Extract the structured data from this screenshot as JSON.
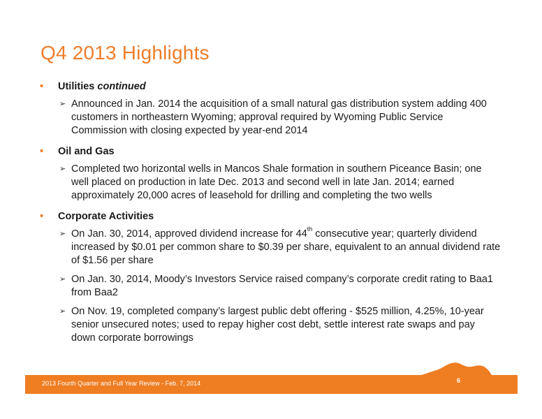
{
  "slide": {
    "title": "Q4 2013 Highlights",
    "sections": [
      {
        "heading": "Utilities ",
        "heading_em": "continued",
        "items": [
          {
            "text": "Announced in Jan. 2014 the acquisition of a small natural gas distribution system adding 400 customers in northeastern Wyoming; approval required by Wyoming Public Service Commission with closing expected by year-end 2014"
          }
        ]
      },
      {
        "heading": "Oil and Gas",
        "heading_em": "",
        "items": [
          {
            "text": "Completed two horizontal wells in Mancos Shale formation in southern Piceance Basin; one well placed on production in late Dec. 2013 and second well in late Jan. 2014; earned approximately 20,000 acres of leasehold for drilling and completing the two wells"
          }
        ]
      },
      {
        "heading": "Corporate Activities",
        "heading_em": "",
        "items": [
          {
            "pre": "On Jan. 30, 2014, approved dividend increase for 44",
            "sup": "th",
            "post": " consecutive year; quarterly dividend increased by $0.01 per common share to $0.39 per share, equivalent to an annual dividend rate of $1.56 per share"
          },
          {
            "text": "On Jan. 30, 2014, Moody’s Investors Service raised company’s corporate credit rating to Baa1 from Baa2"
          },
          {
            "text": "On Nov. 19, completed company’s largest public debt offering - $525 million, 4.25%, 10-year senior unsecured notes; used to repay higher cost debt, settle interest rate swaps and pay down corporate borrowings"
          }
        ]
      }
    ],
    "bullet_symbol": "•",
    "arrow_symbol": "➢"
  },
  "footer": {
    "text": "2013 Fourth Quarter and Full Year Review - Feb. 7, 2014",
    "page_number": "6"
  },
  "colors": {
    "accent": "#ee7d2a",
    "footer_bar": "#ef7d22"
  }
}
